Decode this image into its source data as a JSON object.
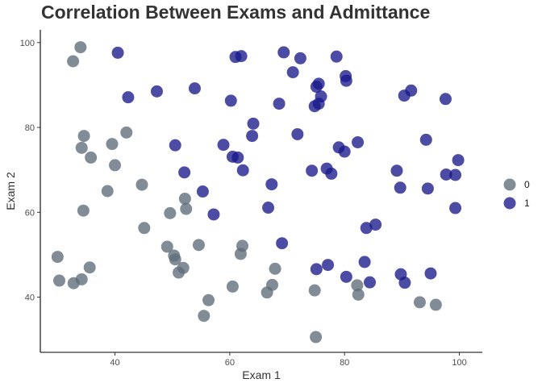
{
  "chart_data": {
    "type": "scatter",
    "title": "Correlation Between Exams and Admittance",
    "xlabel": "Exam 1",
    "ylabel": "Exam 2",
    "xlim": [
      27,
      104
    ],
    "ylim": [
      27,
      103
    ],
    "xticks": [
      40,
      60,
      80,
      100
    ],
    "yticks": [
      40,
      60,
      80,
      100
    ],
    "grid": false,
    "legend": {
      "position": "right",
      "entries": [
        "0",
        "1"
      ]
    },
    "colors": {
      "0": "#5f6b7a",
      "1": "#1a1a8c"
    },
    "series": [
      {
        "name": "0",
        "points": [
          [
            34,
            98.9
          ],
          [
            32.7,
            95.6
          ],
          [
            42,
            78.8
          ],
          [
            34.6,
            78
          ],
          [
            39.5,
            76.1
          ],
          [
            34.2,
            75.2
          ],
          [
            35.8,
            72.9
          ],
          [
            40,
            71.1
          ],
          [
            44.7,
            66.5
          ],
          [
            38.7,
            65
          ],
          [
            52.2,
            63.2
          ],
          [
            34.5,
            60.4
          ],
          [
            52.4,
            60.8
          ],
          [
            49.6,
            59.8
          ],
          [
            45.1,
            56.3
          ],
          [
            54.6,
            52.3
          ],
          [
            62.2,
            52.1
          ],
          [
            49.1,
            51.9
          ],
          [
            61.9,
            50.2
          ],
          [
            50.3,
            49.8
          ],
          [
            50.5,
            48.9
          ],
          [
            30,
            49.5
          ],
          [
            35.6,
            47
          ],
          [
            51.9,
            46.9
          ],
          [
            67.9,
            46.7
          ],
          [
            51.1,
            45.8
          ],
          [
            30.3,
            43.9
          ],
          [
            32.8,
            43.3
          ],
          [
            34.2,
            44.2
          ],
          [
            60.5,
            42.5
          ],
          [
            67.4,
            42.9
          ],
          [
            74.8,
            41.6
          ],
          [
            82.2,
            42.8
          ],
          [
            66.5,
            41.1
          ],
          [
            82.4,
            40.6
          ],
          [
            56.3,
            39.3
          ],
          [
            93.1,
            38.8
          ],
          [
            95.9,
            38.2
          ],
          [
            55.5,
            35.6
          ],
          [
            75,
            30.6
          ]
        ]
      },
      {
        "name": "1",
        "points": [
          [
            40.5,
            97.6
          ],
          [
            61,
            96.6
          ],
          [
            62,
            96.8
          ],
          [
            69.4,
            97.7
          ],
          [
            72.3,
            96.3
          ],
          [
            78.6,
            96.7
          ],
          [
            71,
            93
          ],
          [
            80.2,
            92.1
          ],
          [
            80.3,
            91
          ],
          [
            75.1,
            89.6
          ],
          [
            75.5,
            90.3
          ],
          [
            47.3,
            88.5
          ],
          [
            53.9,
            89.2
          ],
          [
            42.3,
            87.1
          ],
          [
            90.4,
            87.5
          ],
          [
            91.6,
            88.7
          ],
          [
            97.6,
            86.7
          ],
          [
            60.2,
            86.3
          ],
          [
            75.9,
            87.3
          ],
          [
            68.6,
            85.6
          ],
          [
            75.5,
            85.6
          ],
          [
            74.8,
            85
          ],
          [
            64.1,
            80.9
          ],
          [
            63.9,
            78
          ],
          [
            71.8,
            78.4
          ],
          [
            50.5,
            75.8
          ],
          [
            58.9,
            75.9
          ],
          [
            79,
            75.3
          ],
          [
            82.3,
            76.5
          ],
          [
            80,
            74.3
          ],
          [
            94.2,
            77.1
          ],
          [
            60.5,
            73.1
          ],
          [
            61.4,
            72.9
          ],
          [
            99.8,
            72.3
          ],
          [
            52.1,
            69.4
          ],
          [
            62.3,
            69.9
          ],
          [
            74.3,
            69.8
          ],
          [
            76.9,
            70.3
          ],
          [
            77.7,
            69.1
          ],
          [
            89.1,
            69.8
          ],
          [
            97.7,
            68.9
          ],
          [
            99.3,
            68.8
          ],
          [
            67.3,
            66.6
          ],
          [
            89.7,
            65.8
          ],
          [
            94.5,
            65.6
          ],
          [
            55.3,
            64.9
          ],
          [
            57.2,
            59.5
          ],
          [
            66.7,
            61.1
          ],
          [
            99.3,
            61
          ],
          [
            85.4,
            57.1
          ],
          [
            83.8,
            56.3
          ],
          [
            69.1,
            52.7
          ],
          [
            83.5,
            48.3
          ],
          [
            75.1,
            46.6
          ],
          [
            77.1,
            47.6
          ],
          [
            80.3,
            44.8
          ],
          [
            84.4,
            43.5
          ],
          [
            89.8,
            45.4
          ],
          [
            90.5,
            43.4
          ],
          [
            95,
            45.6
          ]
        ]
      }
    ]
  }
}
